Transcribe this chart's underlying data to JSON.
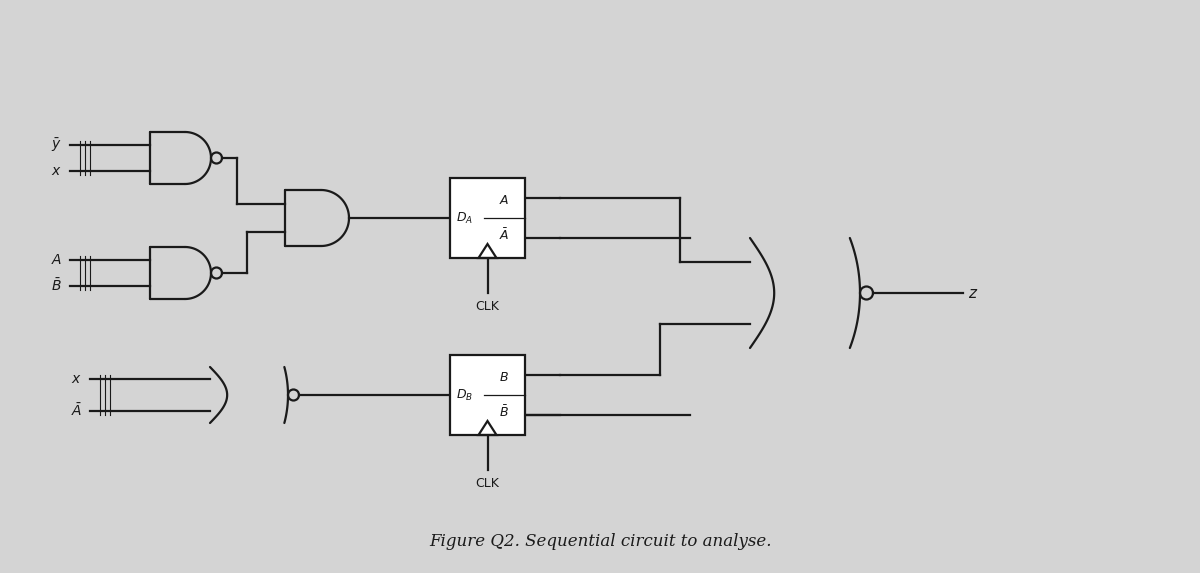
{
  "bg_color": "#d4d4d4",
  "line_color": "#1a1a1a",
  "lw": 1.6,
  "fig_caption": "Figure Q2. Sequential circuit to analyse."
}
